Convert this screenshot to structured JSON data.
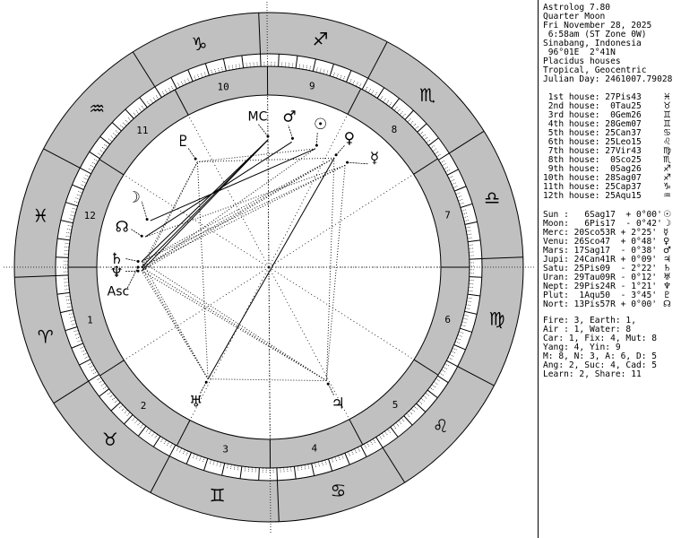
{
  "header": {
    "lines": [
      "Astrolog 7.80",
      "Quarter Moon",
      "Fri November 28, 2025",
      " 6:58am (ST Zone 0W)",
      "Sinabang, Indonesia",
      " 96°01E  2°41N",
      "Placidus houses",
      "Tropical, Geocentric",
      "Julian Day: 2461007.79028"
    ]
  },
  "houses": [
    {
      "text": " 1st house: 27Pis43",
      "glyph": "♓",
      "longitude": 357.72,
      "number": "1"
    },
    {
      "text": " 2nd house:  0Tau25",
      "glyph": "♉",
      "longitude": 30.42,
      "number": "2"
    },
    {
      "text": " 3rd house:  0Gem26",
      "glyph": "♊",
      "longitude": 60.43,
      "number": "3"
    },
    {
      "text": " 4th house: 28Gem07",
      "glyph": "♊",
      "longitude": 88.12,
      "number": "4"
    },
    {
      "text": " 5th house: 25Can37",
      "glyph": "♋",
      "longitude": 115.62,
      "number": "5"
    },
    {
      "text": " 6th house: 25Leo15",
      "glyph": "♌",
      "longitude": 145.25,
      "number": "6"
    },
    {
      "text": " 7th house: 27Vir43",
      "glyph": "♍",
      "longitude": 177.72,
      "number": "7"
    },
    {
      "text": " 8th house:  0Sco25",
      "glyph": "♏",
      "longitude": 210.42,
      "number": "8"
    },
    {
      "text": " 9th house:  0Sag26",
      "glyph": "♐",
      "longitude": 240.43,
      "number": "9"
    },
    {
      "text": "10th house: 28Sag07",
      "glyph": "♐",
      "longitude": 268.12,
      "number": "10"
    },
    {
      "text": "11th house: 25Cap37",
      "glyph": "♑",
      "longitude": 295.62,
      "number": "11"
    },
    {
      "text": "12th house: 25Aqu15",
      "glyph": "♒",
      "longitude": 325.25,
      "number": "12"
    }
  ],
  "planets": [
    {
      "name": "Sun",
      "text": "Sun :   6Sag17  + 0°00'",
      "glyph": "☉",
      "longitude": 246.28
    },
    {
      "name": "Moon",
      "text": "Moon:   6Pis17  - 0°42'",
      "glyph": "☽",
      "longitude": 336.28
    },
    {
      "name": "Mercury",
      "text": "Merc: 20Sco53R + 2°25'",
      "glyph": "☿",
      "longitude": 230.88
    },
    {
      "name": "Venus",
      "text": "Venu: 26Sco47  + 0°48'",
      "glyph": "♀",
      "longitude": 236.78
    },
    {
      "name": "Mars",
      "text": "Mars: 17Sag17  - 0°38'",
      "glyph": "♂",
      "longitude": 257.28
    },
    {
      "name": "Jupiter",
      "text": "Jupi: 24Can41R + 0°09'",
      "glyph": "♃",
      "longitude": 114.68
    },
    {
      "name": "Saturn",
      "text": "Satu: 25Pis09  - 2°22'",
      "glyph": "♄",
      "longitude": 355.15
    },
    {
      "name": "Uranus",
      "text": "Uran: 29Tau09R - 0°12'",
      "glyph": "♅",
      "longitude": 59.15
    },
    {
      "name": "Neptune",
      "text": "Nept: 29Pis24R - 1°21'",
      "glyph": "♆",
      "longitude": 359.4
    },
    {
      "name": "Pluto",
      "text": "Plut:  1Aqu50  - 3°45'",
      "glyph": "♇",
      "longitude": 301.83
    },
    {
      "name": "North Node",
      "text": "Nort: 13Pis57R + 0°00'",
      "glyph": "☊",
      "longitude": 343.95
    }
  ],
  "angles": [
    {
      "label": "Asc",
      "longitude": 357.72
    },
    {
      "label": "MC",
      "longitude": 268.12
    }
  ],
  "signs": [
    "♈",
    "♉",
    "♊",
    "♋",
    "♌",
    "♍",
    "♎",
    "♏",
    "♐",
    "♑",
    "♒",
    "♓"
  ],
  "stats": [
    "Fire: 3, Earth: 1,",
    "Air : 1, Water: 8",
    "Car: 1, Fix: 4, Mut: 8",
    "Yang: 4, Yin: 9",
    "M: 8, N: 3, A: 6, D: 5",
    "Ang: 2, Suc: 4, Cad: 5",
    "Learn: 2, Share: 11"
  ],
  "colors": {
    "ring": "#c0c0c0",
    "line": "#000000",
    "background": "#ffffff"
  }
}
